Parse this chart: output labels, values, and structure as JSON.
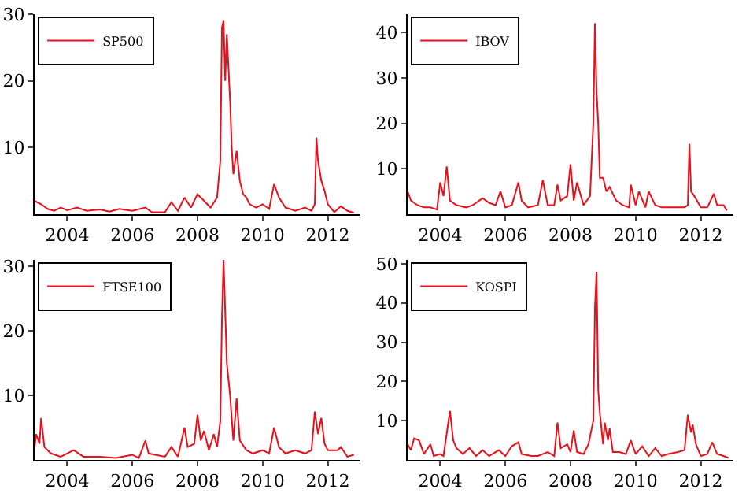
{
  "chart_data": [
    {
      "type": "line",
      "x": [
        2003,
        2003.2,
        2003.4,
        2003.6,
        2003.8,
        2004,
        2004.3,
        2004.6,
        2005,
        2005.3,
        2005.6,
        2006,
        2006.4,
        2006.6,
        2007,
        2007.2,
        2007.4,
        2007.6,
        2007.8,
        2008,
        2008.2,
        2008.4,
        2008.6,
        2008.7,
        2008.75,
        2008.8,
        2008.85,
        2008.9,
        2009,
        2009.05,
        2009.1,
        2009.2,
        2009.3,
        2009.4,
        2009.5,
        2009.6,
        2009.8,
        2010,
        2010.2,
        2010.35,
        2010.5,
        2010.7,
        2011,
        2011.3,
        2011.5,
        2011.6,
        2011.65,
        2011.7,
        2011.8,
        2011.9,
        2012,
        2012.2,
        2012.4,
        2012.6,
        2012.8
      ],
      "series": [
        {
          "name": "SP500",
          "color": "#e8101a",
          "values": [
            2,
            1.5,
            0.8,
            0.5,
            1,
            0.6,
            1,
            0.5,
            0.7,
            0.4,
            0.8,
            0.5,
            1,
            0.3,
            0.3,
            1.8,
            0.5,
            2.5,
            1,
            3,
            2,
            1,
            2.5,
            8,
            28,
            29,
            20,
            27,
            17,
            10,
            6,
            9.5,
            5,
            3,
            2.5,
            1.5,
            1,
            1.5,
            0.8,
            4.5,
            2.5,
            1,
            0.5,
            1,
            0.5,
            1.5,
            11.5,
            8,
            5,
            3.5,
            1.5,
            0.3,
            1.2,
            0.5,
            0.2
          ]
        }
      ],
      "xlim": [
        2003,
        2013
      ],
      "ylim": [
        0,
        30
      ],
      "xticks": [
        2004,
        2006,
        2008,
        2010,
        2012
      ],
      "yticks": [
        10,
        20,
        30
      ],
      "legend": "top left",
      "grid": false
    },
    {
      "type": "line",
      "x": [
        2003,
        2003.1,
        2003.3,
        2003.5,
        2003.7,
        2003.9,
        2004,
        2004.1,
        2004.2,
        2004.3,
        2004.5,
        2004.8,
        2005,
        2005.3,
        2005.5,
        2005.7,
        2005.85,
        2006,
        2006.2,
        2006.4,
        2006.5,
        2006.7,
        2007,
        2007.15,
        2007.3,
        2007.5,
        2007.6,
        2007.7,
        2007.9,
        2008,
        2008.1,
        2008.2,
        2008.4,
        2008.6,
        2008.65,
        2008.7,
        2008.75,
        2008.8,
        2008.85,
        2008.9,
        2009,
        2009.1,
        2009.2,
        2009.4,
        2009.6,
        2009.8,
        2009.85,
        2010,
        2010.1,
        2010.3,
        2010.4,
        2010.6,
        2010.8,
        2011,
        2011.3,
        2011.5,
        2011.6,
        2011.65,
        2011.7,
        2011.8,
        2012,
        2012.2,
        2012.4,
        2012.5,
        2012.7,
        2012.8
      ],
      "series": [
        {
          "name": "IBOV",
          "color": "#e8101a",
          "values": [
            5,
            3,
            2,
            1.5,
            1.5,
            1,
            7,
            4,
            10.5,
            3,
            2,
            1.5,
            2,
            3.5,
            2.5,
            2,
            5,
            1.5,
            2,
            7,
            3,
            1.5,
            2,
            7.5,
            2,
            2,
            6.5,
            3,
            4,
            11,
            3,
            7,
            2,
            4,
            12,
            20,
            42,
            27,
            20,
            8,
            8,
            5,
            6,
            3,
            2,
            1.5,
            6.5,
            2,
            5,
            1.5,
            5,
            2,
            1.5,
            1.5,
            1.5,
            1.5,
            2,
            15.5,
            5,
            4,
            1.5,
            1.5,
            4.5,
            2,
            2,
            0.8
          ]
        }
      ],
      "xlim": [
        2003,
        2013
      ],
      "ylim": [
        0,
        44
      ],
      "xticks": [
        2004,
        2006,
        2008,
        2010,
        2012
      ],
      "yticks": [
        10,
        20,
        30,
        40
      ],
      "legend": "top left",
      "grid": false
    },
    {
      "type": "line",
      "x": [
        2003,
        2003.05,
        2003.15,
        2003.2,
        2003.3,
        2003.5,
        2003.8,
        2004.2,
        2004.5,
        2005,
        2005.5,
        2006,
        2006.2,
        2006.4,
        2006.5,
        2007,
        2007.2,
        2007.4,
        2007.6,
        2007.7,
        2007.9,
        2008,
        2008.1,
        2008.2,
        2008.35,
        2008.5,
        2008.6,
        2008.7,
        2008.75,
        2008.8,
        2008.85,
        2008.9,
        2009,
        2009.1,
        2009.2,
        2009.3,
        2009.5,
        2009.7,
        2010,
        2010.2,
        2010.35,
        2010.5,
        2010.7,
        2011,
        2011.3,
        2011.5,
        2011.6,
        2011.7,
        2011.8,
        2011.9,
        2012,
        2012.3,
        2012.4,
        2012.6,
        2012.8
      ],
      "series": [
        {
          "name": "FTSE100",
          "color": "#e8101a",
          "values": [
            2,
            4,
            2.5,
            6.5,
            2,
            1,
            0.5,
            1.5,
            0.5,
            0.5,
            0.3,
            0.8,
            0.3,
            3,
            1,
            0.5,
            2,
            0.5,
            5,
            2,
            2.5,
            7,
            3,
            4.5,
            1.5,
            4,
            2,
            6,
            22,
            31,
            23,
            15,
            10,
            3,
            9.5,
            3,
            1.5,
            1,
            1.5,
            1,
            5,
            2,
            1,
            1.5,
            1,
            1.5,
            7.5,
            4,
            6.5,
            2.5,
            1.5,
            1.5,
            2,
            0.5,
            0.8
          ]
        }
      ],
      "xlim": [
        2003,
        2013
      ],
      "ylim": [
        0,
        31
      ],
      "xticks": [
        2004,
        2006,
        2008,
        2010,
        2012
      ],
      "yticks": [
        10,
        20,
        30
      ],
      "legend": "top left",
      "grid": false
    },
    {
      "type": "line",
      "x": [
        2003,
        2003.1,
        2003.2,
        2003.35,
        2003.5,
        2003.7,
        2003.8,
        2004,
        2004.1,
        2004.3,
        2004.4,
        2004.5,
        2004.7,
        2004.9,
        2005.1,
        2005.3,
        2005.5,
        2005.8,
        2006,
        2006.2,
        2006.4,
        2006.5,
        2006.8,
        2007,
        2007.3,
        2007.5,
        2007.6,
        2007.7,
        2007.9,
        2008,
        2008.1,
        2008.2,
        2008.4,
        2008.55,
        2008.7,
        2008.75,
        2008.8,
        2008.85,
        2008.9,
        2009,
        2009.05,
        2009.15,
        2009.2,
        2009.3,
        2009.5,
        2009.7,
        2009.85,
        2010,
        2010.2,
        2010.4,
        2010.6,
        2010.8,
        2011,
        2011.3,
        2011.5,
        2011.6,
        2011.7,
        2011.75,
        2011.85,
        2012,
        2012.2,
        2012.35,
        2012.5,
        2012.7,
        2012.85
      ],
      "series": [
        {
          "name": "KOSPI",
          "color": "#e8101a",
          "values": [
            4,
            2.5,
            5.5,
            5,
            1.5,
            4,
            1,
            1.5,
            1,
            12.5,
            5,
            3,
            1.5,
            3,
            1,
            2.5,
            1,
            2.5,
            1,
            3.5,
            4.5,
            1.5,
            1,
            1,
            2,
            1,
            9.5,
            3,
            4,
            2,
            7.5,
            2,
            1.5,
            4,
            10,
            39,
            48,
            18,
            12,
            4,
            9.5,
            5,
            8,
            2,
            2,
            1.5,
            5,
            1.5,
            3.5,
            1,
            3,
            1,
            1.5,
            2,
            2.5,
            11.5,
            7,
            9,
            4,
            1,
            1.5,
            4.5,
            1.5,
            1,
            0.5
          ]
        }
      ],
      "xlim": [
        2003,
        2013
      ],
      "ylim": [
        0,
        51
      ],
      "xticks": [
        2004,
        2006,
        2008,
        2010,
        2012
      ],
      "yticks": [
        10,
        20,
        30,
        40,
        50
      ],
      "legend": "top left",
      "grid": false
    }
  ]
}
